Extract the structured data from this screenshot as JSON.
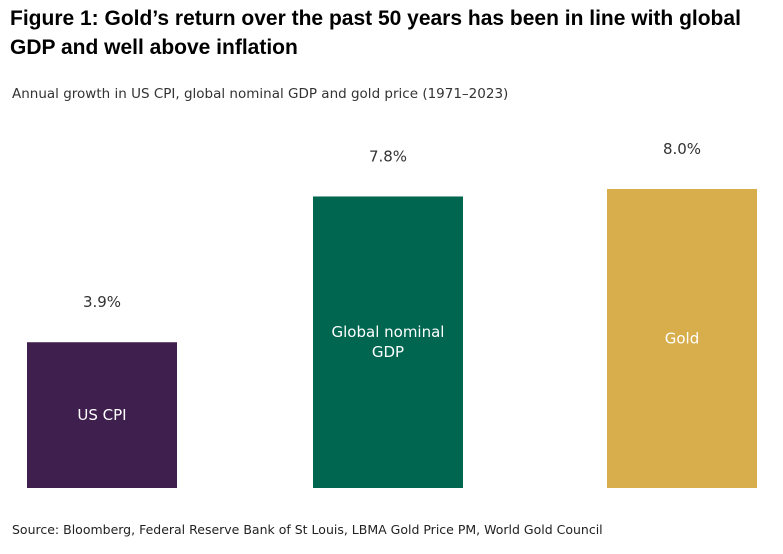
{
  "title": "Figure 1: Gold’s return over the past 50 years has been in line with global GDP and well above inflation",
  "subtitle": "Annual growth in US CPI, global nominal GDP and gold price (1971–2023)",
  "source": "Source: Bloomberg, Federal Reserve Bank of St Louis, LBMA Gold Price PM, World Gold Council",
  "chart_data": {
    "type": "bar",
    "title": "Figure 1: Gold’s return over the past 50 years has been in line with global GDP and well above inflation",
    "subtitle": "Annual growth in US CPI, global nominal GDP and gold price (1971–2023)",
    "categories": [
      "US CPI",
      "Global nominal GDP",
      "Gold"
    ],
    "bar_label_lines": [
      [
        "US CPI"
      ],
      [
        "Global nominal",
        "GDP"
      ],
      [
        "Gold"
      ]
    ],
    "values": [
      3.9,
      7.8,
      8.0
    ],
    "value_labels": [
      "3.9%",
      "7.8%",
      "8.0%"
    ],
    "colors": [
      "#3e1f4d",
      "#006650",
      "#d8ad4b"
    ],
    "ylim": [
      0,
      8.0
    ],
    "xlabel": "",
    "ylabel": "",
    "grid": false,
    "legend": "none"
  }
}
